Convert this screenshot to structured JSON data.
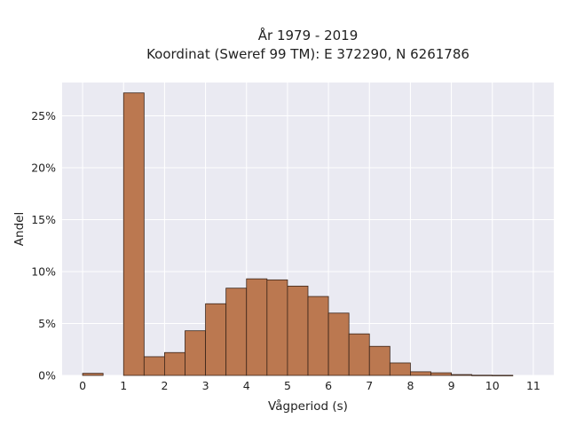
{
  "chart_data": {
    "type": "bar",
    "title_line1": "År 1979 - 2019",
    "title_line2": "Koordinat (Sweref 99 TM): E 372290, N 6261786",
    "xlabel": "Vågperiod (s)",
    "ylabel": "Andel",
    "x_ticks": [
      0,
      1,
      2,
      3,
      4,
      5,
      6,
      7,
      8,
      9,
      10,
      11
    ],
    "x_tick_labels": [
      "0",
      "1",
      "2",
      "3",
      "4",
      "5",
      "6",
      "7",
      "8",
      "9",
      "10",
      "11"
    ],
    "y_ticks": [
      0,
      5,
      10,
      15,
      20,
      25
    ],
    "y_tick_labels": [
      "0%",
      "5%",
      "10%",
      "15%",
      "20%",
      "25%"
    ],
    "xlim": [
      -0.5,
      11.5
    ],
    "ylim": [
      0,
      28.2
    ],
    "bin_width": 0.5,
    "bin_starts": [
      0,
      0.5,
      1,
      1.5,
      2,
      2.5,
      3,
      3.5,
      4,
      4.5,
      5,
      5.5,
      6,
      6.5,
      7,
      7.5,
      8,
      8.5,
      9,
      9.5,
      10,
      10.5
    ],
    "values": [
      0.2,
      0,
      27.2,
      1.8,
      2.2,
      4.3,
      6.9,
      8.4,
      9.3,
      9.2,
      8.6,
      7.6,
      6.0,
      4.0,
      2.8,
      1.2,
      0.35,
      0.25,
      0.08,
      0.02,
      0.01,
      0
    ],
    "grid": true,
    "colors": {
      "bar_fill": "#bb7850",
      "bar_edge": "#3a2418",
      "plot_bg": "#eaeaf2",
      "grid": "#ffffff"
    }
  }
}
